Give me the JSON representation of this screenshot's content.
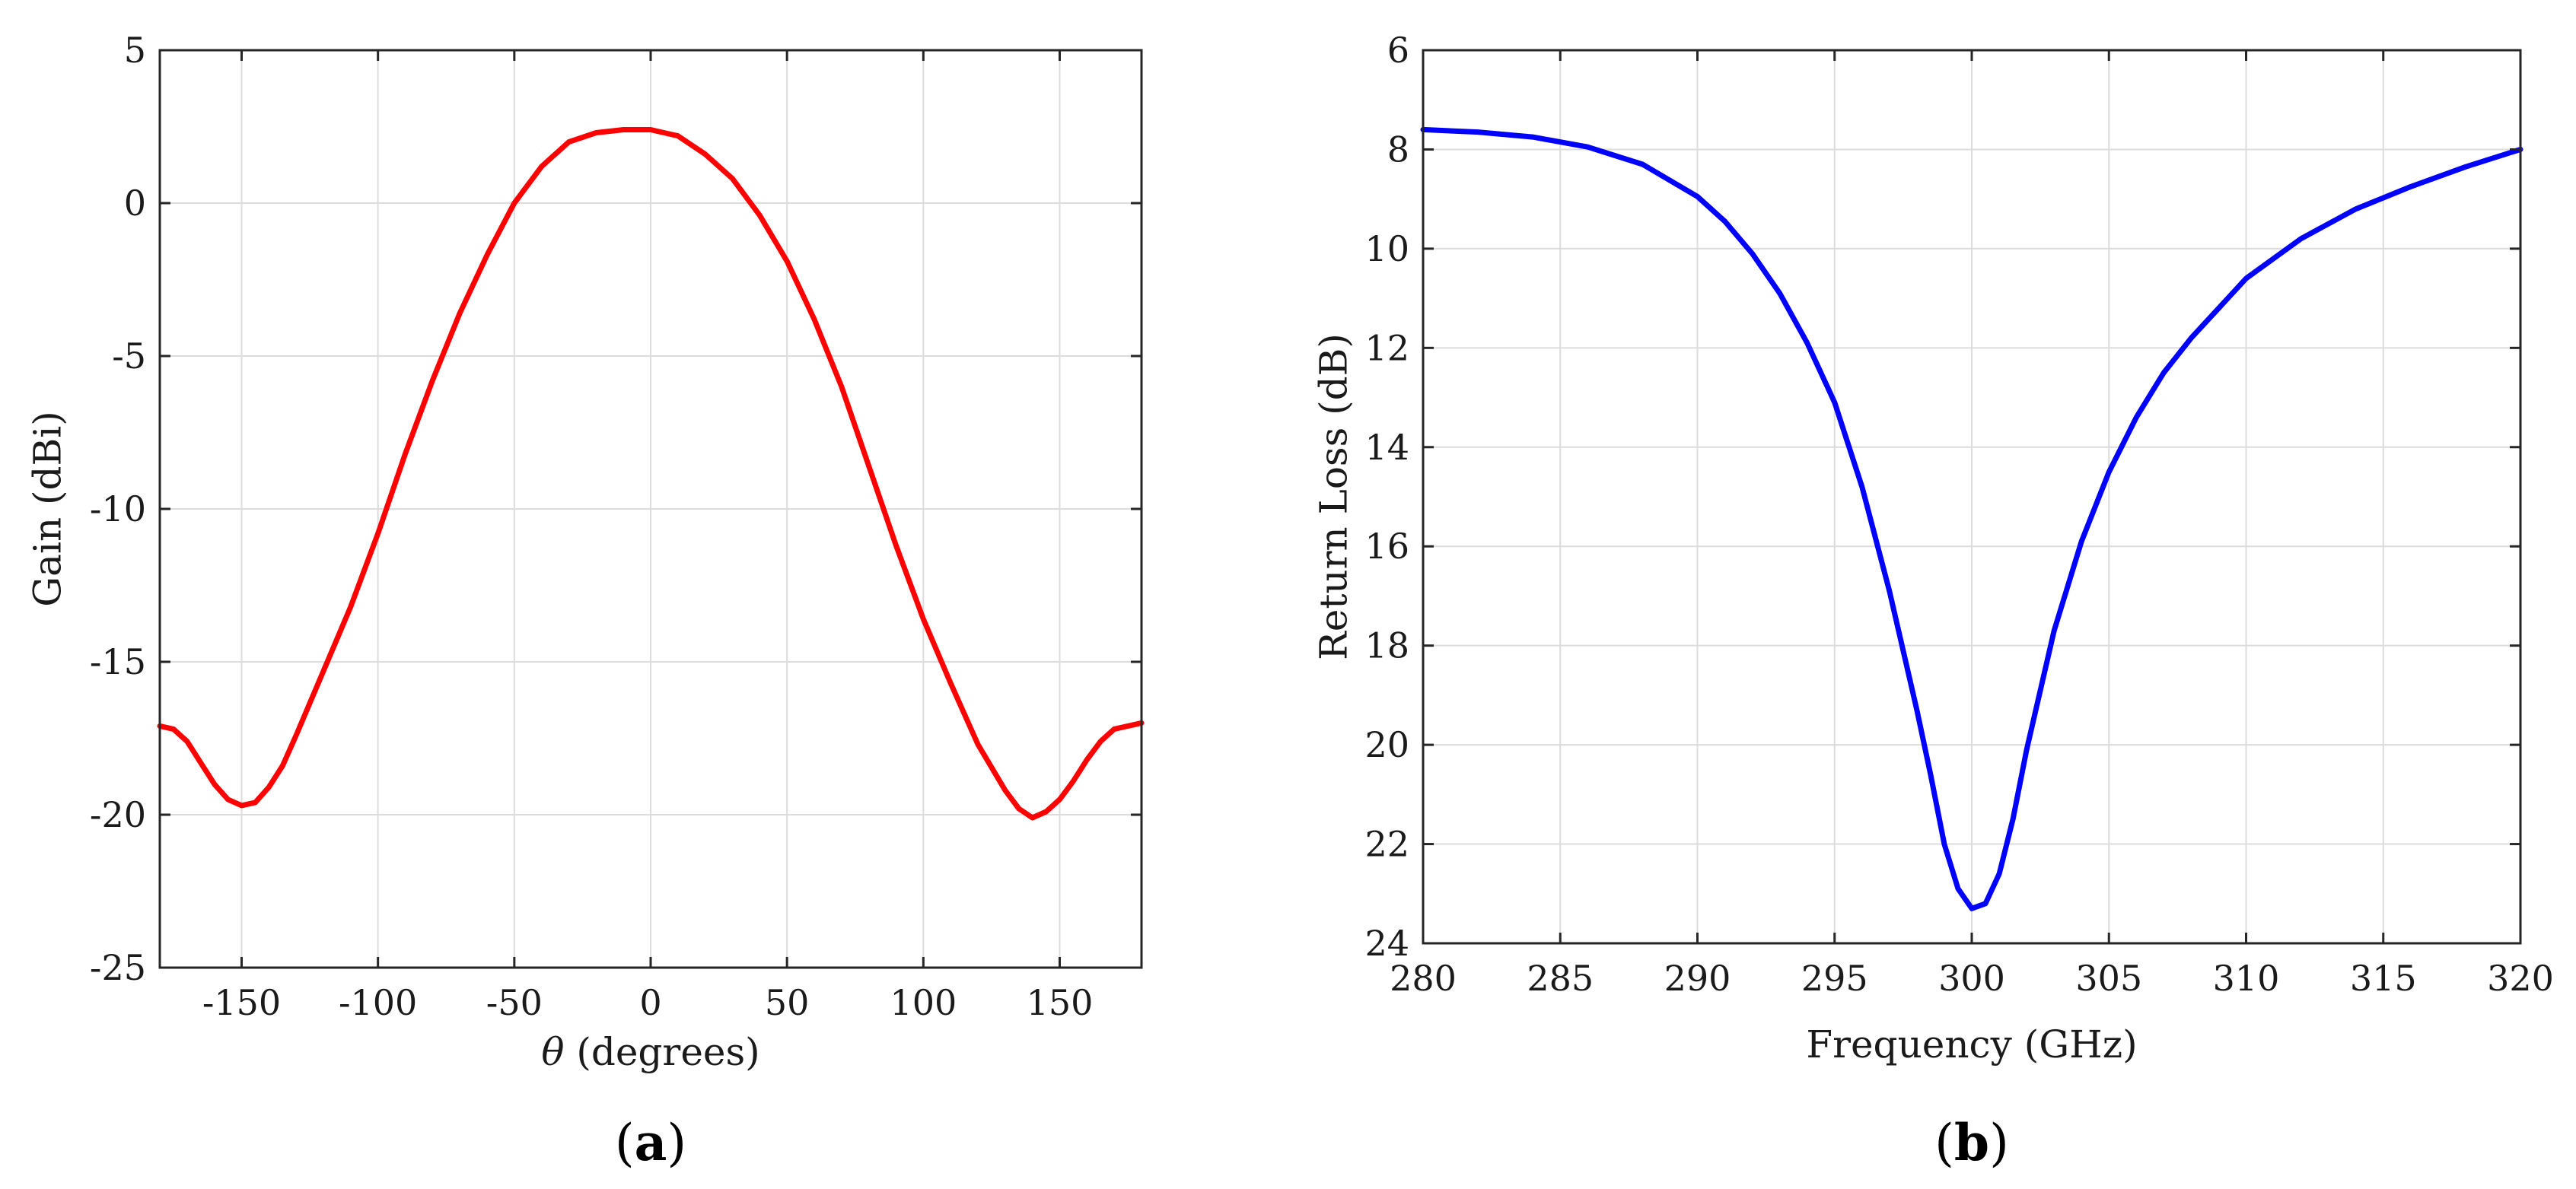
{
  "chart_data": [
    {
      "type": "line",
      "panel": "a",
      "panel_label": {
        "open": "(",
        "letter": "a",
        "close": ")"
      },
      "xlabel": {
        "symbol": "θ",
        "text": " (degrees)"
      },
      "ylabel": "Gain (dBi)",
      "xlim": [
        -180,
        180
      ],
      "ylim": [
        -25,
        5
      ],
      "y_reversed": false,
      "grid": true,
      "xticks": [
        -150,
        -100,
        -50,
        0,
        50,
        100,
        150
      ],
      "xtick_labels": [
        "-150",
        "-100",
        "-50",
        "0",
        "50",
        "100",
        "150"
      ],
      "yticks": [
        -25,
        -20,
        -15,
        -10,
        -5,
        0,
        5
      ],
      "ytick_labels": [
        "-25",
        "-20",
        "-15",
        "-10",
        "-5",
        "0",
        "5"
      ],
      "series": [
        {
          "name": "Gain",
          "color": "#ff0000",
          "x": [
            -180,
            -175,
            -170,
            -165,
            -160,
            -155,
            -150,
            -145,
            -140,
            -135,
            -130,
            -120,
            -110,
            -100,
            -90,
            -80,
            -70,
            -60,
            -50,
            -40,
            -30,
            -20,
            -10,
            0,
            10,
            20,
            30,
            40,
            50,
            60,
            70,
            80,
            90,
            100,
            110,
            120,
            130,
            135,
            140,
            145,
            150,
            155,
            160,
            165,
            170,
            175,
            180
          ],
          "y": [
            -17.1,
            -17.2,
            -17.6,
            -18.3,
            -19.0,
            -19.5,
            -19.7,
            -19.6,
            -19.1,
            -18.4,
            -17.4,
            -15.3,
            -13.2,
            -10.8,
            -8.2,
            -5.8,
            -3.6,
            -1.7,
            0.0,
            1.2,
            2.0,
            2.3,
            2.4,
            2.4,
            2.2,
            1.6,
            0.8,
            -0.4,
            -1.9,
            -3.8,
            -6.0,
            -8.6,
            -11.2,
            -13.6,
            -15.7,
            -17.7,
            -19.2,
            -19.8,
            -20.1,
            -19.9,
            -19.5,
            -18.9,
            -18.2,
            -17.6,
            -17.2,
            -17.1,
            -17.0
          ]
        }
      ]
    },
    {
      "type": "line",
      "panel": "b",
      "panel_label": {
        "open": "(",
        "letter": "b",
        "close": ")"
      },
      "xlabel": "Frequency (GHz)",
      "ylabel": "Return Loss (dB)",
      "xlim": [
        280,
        320
      ],
      "ylim": [
        6,
        24
      ],
      "y_reversed": true,
      "grid": true,
      "xticks": [
        280,
        285,
        290,
        295,
        300,
        305,
        310,
        315,
        320
      ],
      "xtick_labels": [
        "280",
        "285",
        "290",
        "295",
        "300",
        "305",
        "310",
        "315",
        "320"
      ],
      "yticks": [
        6,
        8,
        10,
        12,
        14,
        16,
        18,
        20,
        22,
        24
      ],
      "ytick_labels": [
        "6",
        "8",
        "10",
        "12",
        "14",
        "16",
        "18",
        "20",
        "22",
        "24"
      ],
      "series": [
        {
          "name": "Return Loss",
          "color": "#0000ff",
          "x": [
            280,
            282,
            284,
            286,
            288,
            290,
            291,
            292,
            293,
            294,
            295,
            296,
            297,
            298,
            298.5,
            299,
            299.5,
            300,
            300.5,
            301,
            301.5,
            302,
            303,
            304,
            305,
            306,
            307,
            308,
            310,
            312,
            314,
            316,
            318,
            320
          ],
          "y": [
            7.6,
            7.65,
            7.75,
            7.95,
            8.3,
            8.95,
            9.45,
            10.1,
            10.9,
            11.9,
            13.1,
            14.8,
            16.9,
            19.3,
            20.6,
            22.0,
            22.9,
            23.3,
            23.2,
            22.6,
            21.5,
            20.1,
            17.7,
            15.9,
            14.5,
            13.4,
            12.5,
            11.8,
            10.6,
            9.8,
            9.2,
            8.75,
            8.35,
            8.0
          ]
        }
      ]
    }
  ]
}
